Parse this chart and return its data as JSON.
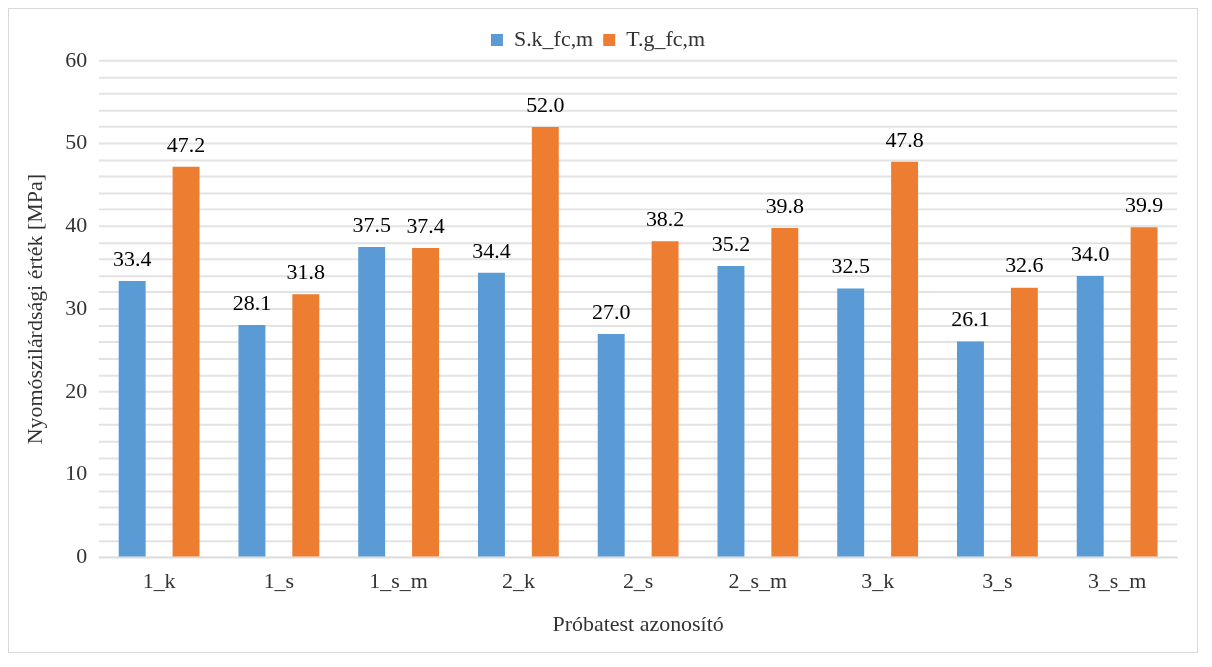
{
  "chart_data": {
    "type": "bar",
    "xlabel": "Próbatest azonosító",
    "ylabel": "Nyomószilárdsági érték [MPa]",
    "categories": [
      "1_k",
      "1_s",
      "1_s_m",
      "2_k",
      "2_s",
      "2_s_m",
      "3_k",
      "3_s",
      "3_s_m"
    ],
    "series": [
      {
        "name": "S.k_fc,m",
        "color": "#5b9bd5",
        "values": [
          33.4,
          28.1,
          37.5,
          34.4,
          27.0,
          35.2,
          32.5,
          26.1,
          34.0
        ],
        "value_labels": [
          "33.4",
          "28.1",
          "37.5",
          "34.4",
          "27.0",
          "35.2",
          "32.5",
          "26.1",
          "34.0"
        ]
      },
      {
        "name": "T.g_fc,m",
        "color": "#ed7d31",
        "values": [
          47.2,
          31.8,
          37.4,
          52.0,
          38.2,
          39.8,
          47.8,
          32.6,
          39.9
        ],
        "value_labels": [
          "47.2",
          "31.8",
          "37.4",
          "52.0",
          "38.2",
          "39.8",
          "47.8",
          "32.6",
          "39.9"
        ]
      }
    ],
    "ylim": [
      0,
      60
    ],
    "yticks": [
      0,
      {
        "value": 2,
        "label": null
      },
      {
        "value": 4,
        "label": null
      },
      {
        "value": 6,
        "label": null
      },
      {
        "value": 8,
        "label": null
      },
      10,
      {
        "value": 12,
        "label": null
      },
      {
        "value": 14,
        "label": null
      },
      {
        "value": 16,
        "label": null
      },
      {
        "value": 18,
        "label": null
      },
      20,
      {
        "value": 22,
        "label": null
      },
      {
        "value": 24,
        "label": null
      },
      {
        "value": 26,
        "label": null
      },
      {
        "value": 28,
        "label": null
      },
      30,
      {
        "value": 32,
        "label": null
      },
      {
        "value": 34,
        "label": null
      },
      {
        "value": 36,
        "label": null
      },
      {
        "value": 38,
        "label": null
      },
      40,
      {
        "value": 42,
        "label": null
      },
      {
        "value": 44,
        "label": null
      },
      {
        "value": 46,
        "label": null
      },
      {
        "value": 48,
        "label": null
      },
      50,
      {
        "value": 52,
        "label": null
      },
      {
        "value": 54,
        "label": null
      },
      {
        "value": 56,
        "label": null
      },
      {
        "value": 58,
        "label": null
      },
      60
    ],
    "grid": "y",
    "legend": "top"
  }
}
